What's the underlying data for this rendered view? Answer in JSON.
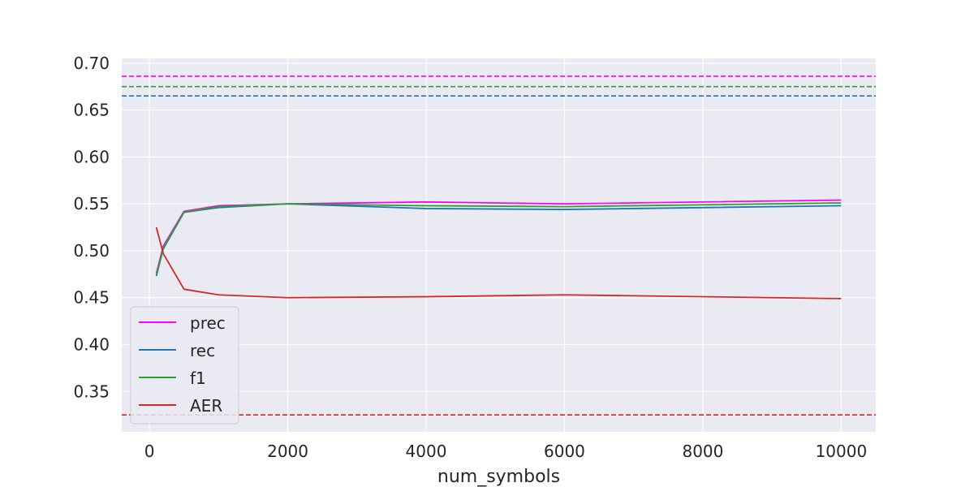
{
  "chart_data": {
    "type": "line",
    "title": "",
    "xlabel": "num_symbols",
    "ylabel": "",
    "xlim": [
      -400,
      10500
    ],
    "ylim": [
      0.307,
      0.705
    ],
    "x_ticks": [
      0,
      2000,
      4000,
      6000,
      8000,
      10000
    ],
    "x_tick_labels": [
      "0",
      "2000",
      "4000",
      "6000",
      "8000",
      "10000"
    ],
    "y_ticks": [
      0.35,
      0.4,
      0.45,
      0.5,
      0.55,
      0.6,
      0.65,
      0.7
    ],
    "y_tick_labels": [
      "0.35",
      "0.40",
      "0.45",
      "0.50",
      "0.55",
      "0.60",
      "0.65",
      "0.70"
    ],
    "grid": true,
    "legend_position": "lower-left",
    "x": [
      100,
      200,
      500,
      1000,
      2000,
      4000,
      6000,
      10000
    ],
    "series": [
      {
        "name": "prec",
        "color": "#ff00ff",
        "values": [
          0.476,
          0.505,
          0.542,
          0.548,
          0.55,
          0.552,
          0.55,
          0.554
        ]
      },
      {
        "name": "rec",
        "color": "#1f77b4",
        "values": [
          0.473,
          0.502,
          0.541,
          0.546,
          0.55,
          0.545,
          0.544,
          0.548
        ]
      },
      {
        "name": "f1",
        "color": "#2ca02c",
        "values": [
          0.474,
          0.503,
          0.541,
          0.547,
          0.55,
          0.548,
          0.547,
          0.551
        ]
      },
      {
        "name": "AER",
        "color": "#d62728",
        "values": [
          0.525,
          0.497,
          0.459,
          0.453,
          0.45,
          0.451,
          0.453,
          0.449
        ]
      }
    ],
    "reference_lines": [
      {
        "series": "prec",
        "color": "#ff00ff",
        "y": 0.686
      },
      {
        "series": "f1",
        "color": "#2ca02c",
        "y": 0.675
      },
      {
        "series": "rec",
        "color": "#1f77b4",
        "y": 0.665
      },
      {
        "series": "AER",
        "color": "#d62728",
        "y": 0.325
      }
    ]
  }
}
